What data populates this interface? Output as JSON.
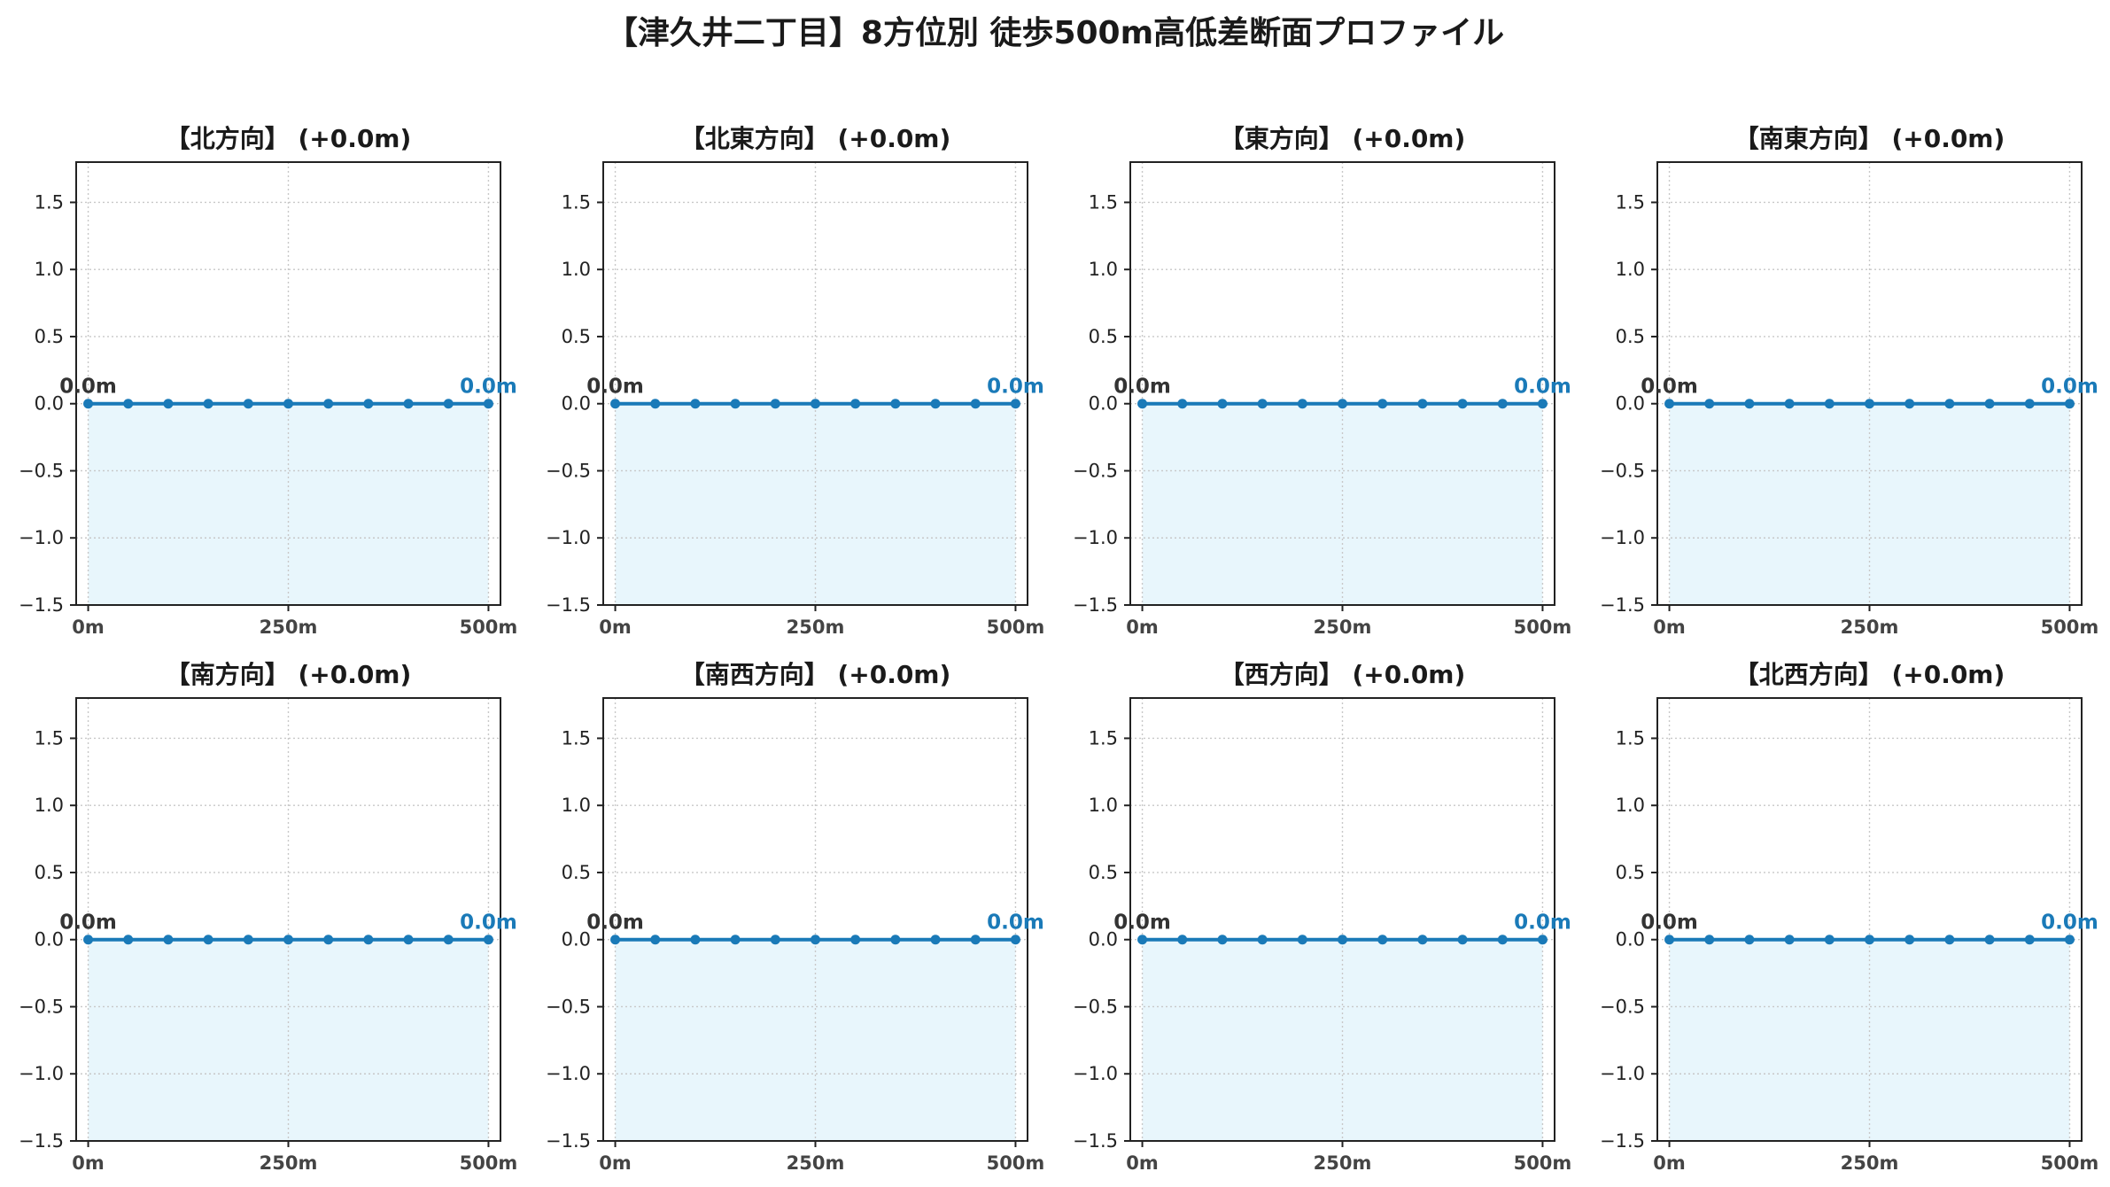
{
  "title": "【津久井二丁目】8方位別 徒歩500m高低差断面プロファイル",
  "colors": {
    "line": "#1a7ab8",
    "fill": "#e8f6fc",
    "grid": "#c8c8c8",
    "start_label": "#333333",
    "end_label": "#1a7ab8"
  },
  "chart_data": [
    {
      "type": "area",
      "title": "【北方向】 (+0.0m)",
      "x": [
        0,
        50,
        100,
        150,
        200,
        250,
        300,
        350,
        400,
        450,
        500
      ],
      "y": [
        0,
        0,
        0,
        0,
        0,
        0,
        0,
        0,
        0,
        0,
        0
      ],
      "xticks": [
        0,
        250,
        500
      ],
      "xtick_labels": [
        "0m",
        "250m",
        "500m"
      ],
      "yticks": [
        -1.5,
        -1.0,
        -0.5,
        0.0,
        0.5,
        1.0,
        1.5
      ],
      "ytick_labels": [
        "−1.5",
        "−1.0",
        "−0.5",
        "0.0",
        "0.5",
        "1.0",
        "1.5"
      ],
      "xlim": [
        -15,
        515
      ],
      "ylim": [
        -1.5,
        1.8
      ],
      "grid": true,
      "start_label": "0.0m",
      "end_label": "0.0m"
    },
    {
      "type": "area",
      "title": "【北東方向】 (+0.0m)",
      "x": [
        0,
        50,
        100,
        150,
        200,
        250,
        300,
        350,
        400,
        450,
        500
      ],
      "y": [
        0,
        0,
        0,
        0,
        0,
        0,
        0,
        0,
        0,
        0,
        0
      ],
      "xticks": [
        0,
        250,
        500
      ],
      "xtick_labels": [
        "0m",
        "250m",
        "500m"
      ],
      "yticks": [
        -1.5,
        -1.0,
        -0.5,
        0.0,
        0.5,
        1.0,
        1.5
      ],
      "ytick_labels": [
        "−1.5",
        "−1.0",
        "−0.5",
        "0.0",
        "0.5",
        "1.0",
        "1.5"
      ],
      "xlim": [
        -15,
        515
      ],
      "ylim": [
        -1.5,
        1.8
      ],
      "grid": true,
      "start_label": "0.0m",
      "end_label": "0.0m"
    },
    {
      "type": "area",
      "title": "【東方向】 (+0.0m)",
      "x": [
        0,
        50,
        100,
        150,
        200,
        250,
        300,
        350,
        400,
        450,
        500
      ],
      "y": [
        0,
        0,
        0,
        0,
        0,
        0,
        0,
        0,
        0,
        0,
        0
      ],
      "xticks": [
        0,
        250,
        500
      ],
      "xtick_labels": [
        "0m",
        "250m",
        "500m"
      ],
      "yticks": [
        -1.5,
        -1.0,
        -0.5,
        0.0,
        0.5,
        1.0,
        1.5
      ],
      "ytick_labels": [
        "−1.5",
        "−1.0",
        "−0.5",
        "0.0",
        "0.5",
        "1.0",
        "1.5"
      ],
      "xlim": [
        -15,
        515
      ],
      "ylim": [
        -1.5,
        1.8
      ],
      "grid": true,
      "start_label": "0.0m",
      "end_label": "0.0m"
    },
    {
      "type": "area",
      "title": "【南東方向】 (+0.0m)",
      "x": [
        0,
        50,
        100,
        150,
        200,
        250,
        300,
        350,
        400,
        450,
        500
      ],
      "y": [
        0,
        0,
        0,
        0,
        0,
        0,
        0,
        0,
        0,
        0,
        0
      ],
      "xticks": [
        0,
        250,
        500
      ],
      "xtick_labels": [
        "0m",
        "250m",
        "500m"
      ],
      "yticks": [
        -1.5,
        -1.0,
        -0.5,
        0.0,
        0.5,
        1.0,
        1.5
      ],
      "ytick_labels": [
        "−1.5",
        "−1.0",
        "−0.5",
        "0.0",
        "0.5",
        "1.0",
        "1.5"
      ],
      "xlim": [
        -15,
        515
      ],
      "ylim": [
        -1.5,
        1.8
      ],
      "grid": true,
      "start_label": "0.0m",
      "end_label": "0.0m"
    },
    {
      "type": "area",
      "title": "【南方向】 (+0.0m)",
      "x": [
        0,
        50,
        100,
        150,
        200,
        250,
        300,
        350,
        400,
        450,
        500
      ],
      "y": [
        0,
        0,
        0,
        0,
        0,
        0,
        0,
        0,
        0,
        0,
        0
      ],
      "xticks": [
        0,
        250,
        500
      ],
      "xtick_labels": [
        "0m",
        "250m",
        "500m"
      ],
      "yticks": [
        -1.5,
        -1.0,
        -0.5,
        0.0,
        0.5,
        1.0,
        1.5
      ],
      "ytick_labels": [
        "−1.5",
        "−1.0",
        "−0.5",
        "0.0",
        "0.5",
        "1.0",
        "1.5"
      ],
      "xlim": [
        -15,
        515
      ],
      "ylim": [
        -1.5,
        1.8
      ],
      "grid": true,
      "start_label": "0.0m",
      "end_label": "0.0m"
    },
    {
      "type": "area",
      "title": "【南西方向】 (+0.0m)",
      "x": [
        0,
        50,
        100,
        150,
        200,
        250,
        300,
        350,
        400,
        450,
        500
      ],
      "y": [
        0,
        0,
        0,
        0,
        0,
        0,
        0,
        0,
        0,
        0,
        0
      ],
      "xticks": [
        0,
        250,
        500
      ],
      "xtick_labels": [
        "0m",
        "250m",
        "500m"
      ],
      "yticks": [
        -1.5,
        -1.0,
        -0.5,
        0.0,
        0.5,
        1.0,
        1.5
      ],
      "ytick_labels": [
        "−1.5",
        "−1.0",
        "−0.5",
        "0.0",
        "0.5",
        "1.0",
        "1.5"
      ],
      "xlim": [
        -15,
        515
      ],
      "ylim": [
        -1.5,
        1.8
      ],
      "grid": true,
      "start_label": "0.0m",
      "end_label": "0.0m"
    },
    {
      "type": "area",
      "title": "【西方向】 (+0.0m)",
      "x": [
        0,
        50,
        100,
        150,
        200,
        250,
        300,
        350,
        400,
        450,
        500
      ],
      "y": [
        0,
        0,
        0,
        0,
        0,
        0,
        0,
        0,
        0,
        0,
        0
      ],
      "xticks": [
        0,
        250,
        500
      ],
      "xtick_labels": [
        "0m",
        "250m",
        "500m"
      ],
      "yticks": [
        -1.5,
        -1.0,
        -0.5,
        0.0,
        0.5,
        1.0,
        1.5
      ],
      "ytick_labels": [
        "−1.5",
        "−1.0",
        "−0.5",
        "0.0",
        "0.5",
        "1.0",
        "1.5"
      ],
      "xlim": [
        -15,
        515
      ],
      "ylim": [
        -1.5,
        1.8
      ],
      "grid": true,
      "start_label": "0.0m",
      "end_label": "0.0m"
    },
    {
      "type": "area",
      "title": "【北西方向】 (+0.0m)",
      "x": [
        0,
        50,
        100,
        150,
        200,
        250,
        300,
        350,
        400,
        450,
        500
      ],
      "y": [
        0,
        0,
        0,
        0,
        0,
        0,
        0,
        0,
        0,
        0,
        0
      ],
      "xticks": [
        0,
        250,
        500
      ],
      "xtick_labels": [
        "0m",
        "250m",
        "500m"
      ],
      "yticks": [
        -1.5,
        -1.0,
        -0.5,
        0.0,
        0.5,
        1.0,
        1.5
      ],
      "ytick_labels": [
        "−1.5",
        "−1.0",
        "−0.5",
        "0.0",
        "0.5",
        "1.0",
        "1.5"
      ],
      "xlim": [
        -15,
        515
      ],
      "ylim": [
        -1.5,
        1.8
      ],
      "grid": true,
      "start_label": "0.0m",
      "end_label": "0.0m"
    }
  ]
}
